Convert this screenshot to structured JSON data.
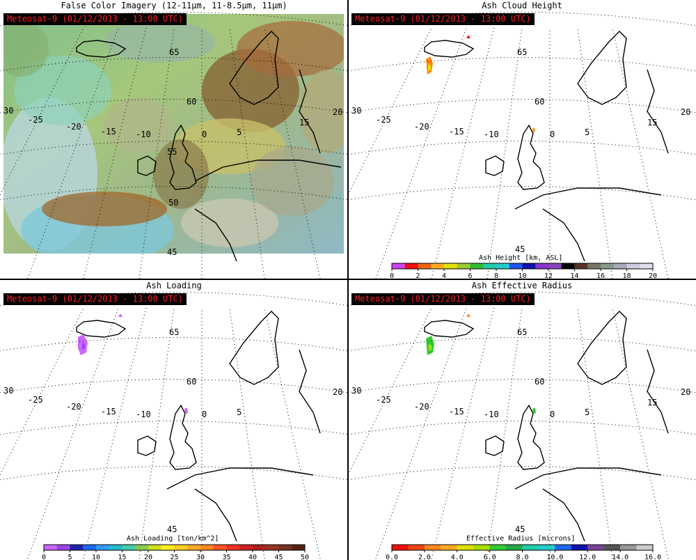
{
  "stamp": "Meteosat-9  (01/12/2013 - 13:00 UTC)",
  "panels": {
    "false_color": {
      "title": "False Color Imagery (12-11μm, 11-8.5μm, 11μm)"
    },
    "ash_height": {
      "title": "Ash Cloud Height"
    },
    "ash_loading": {
      "title": "Ash Loading"
    },
    "ash_radius": {
      "title": "Ash Effective Radius"
    }
  },
  "map_labels": {
    "lat": [
      "65",
      "60",
      "55",
      "50",
      "45"
    ],
    "lon": [
      "30",
      "-25",
      "-20",
      "-15",
      "-10",
      "0",
      "5",
      "15",
      "20"
    ]
  },
  "colorbars": {
    "height": {
      "title": "Ash Height [km, ASL]",
      "ticks": [
        "0",
        "2",
        "4",
        "6",
        "8",
        "10",
        "12",
        "14",
        "16",
        "18",
        "20"
      ],
      "colors": [
        "#cc44ee",
        "#ee1111",
        "#ee6611",
        "#ffaa22",
        "#e0e000",
        "#99cc33",
        "#33bb33",
        "#22ccaa",
        "#22cccc",
        "#2255ee",
        "#1111aa",
        "#8833cc",
        "#8844bb",
        "#000000",
        "#55332a",
        "#777766",
        "#889988",
        "#aaaabb",
        "#ccccdd",
        "#ddddee"
      ]
    },
    "loading": {
      "title": "Ash Loading [ton/km^2]",
      "ticks": [
        "0",
        "5",
        "10",
        "15",
        "20",
        "25",
        "30",
        "35",
        "40",
        "45",
        "50"
      ],
      "colors": [
        "#cc66ff",
        "#9944ee",
        "#2222aa",
        "#2266ee",
        "#3399ff",
        "#22bbcc",
        "#44ccaa",
        "#88cc55",
        "#ccdd22",
        "#ffee22",
        "#ffcc22",
        "#ffaa22",
        "#ff8822",
        "#ff5522",
        "#ee3322",
        "#cc2222",
        "#aa2222",
        "#993322",
        "#773322",
        "#552211"
      ]
    },
    "radius": {
      "title": "Effective Radius [microns]",
      "ticks": [
        "0.0",
        "2.0",
        "4.0",
        "6.0",
        "8.0",
        "10.0",
        "12.0",
        "14.0",
        "16.0"
      ],
      "colors": [
        "#ee1111",
        "#ee4411",
        "#ff8822",
        "#ffaa22",
        "#e0e000",
        "#aadd00",
        "#33cc33",
        "#22aa44",
        "#22ccaa",
        "#22cccc",
        "#2266ee",
        "#1111aa",
        "#774499",
        "#555555",
        "#999999",
        "#cccccc"
      ]
    }
  }
}
